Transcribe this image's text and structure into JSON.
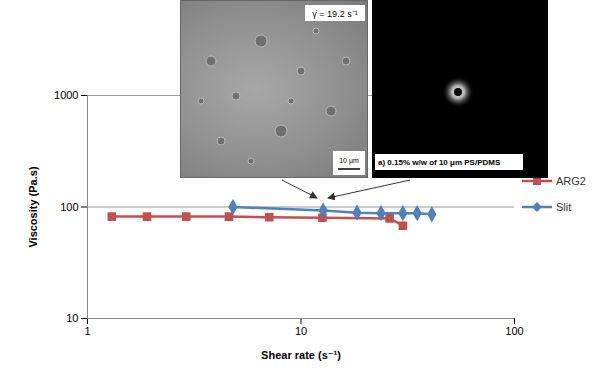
{
  "chart_data": {
    "type": "line",
    "xlabel": "Shear rate (s⁻¹)",
    "ylabel": "Viscosity (Pa.s)",
    "log": true,
    "grid": true,
    "legend": "right",
    "xlim": [
      1,
      100
    ],
    "xticks": [
      1,
      10,
      100
    ],
    "ylim": [
      10,
      1000
    ],
    "yticks": [
      10,
      100,
      1000
    ],
    "series": [
      {
        "name": "ARG2",
        "color": "#c0504d",
        "marker": "square",
        "x": [
          1.3,
          1.9,
          2.9,
          4.6,
          7.1,
          12.6,
          26,
          30
        ],
        "values": [
          82,
          82,
          82,
          82,
          81,
          80,
          79,
          68
        ]
      },
      {
        "name": "Slit",
        "color": "#4f81bd",
        "marker": "diamond",
        "x": [
          4.8,
          12.7,
          18.3,
          23.7,
          30,
          35,
          41
        ],
        "values": [
          100,
          93,
          89,
          88,
          88,
          88,
          86
        ]
      }
    ],
    "annotations": [
      "γ̇ = 19.2 s⁻¹",
      "10 μm",
      "a) 0.15% w/w of 10 μm PS/PDMS"
    ]
  }
}
